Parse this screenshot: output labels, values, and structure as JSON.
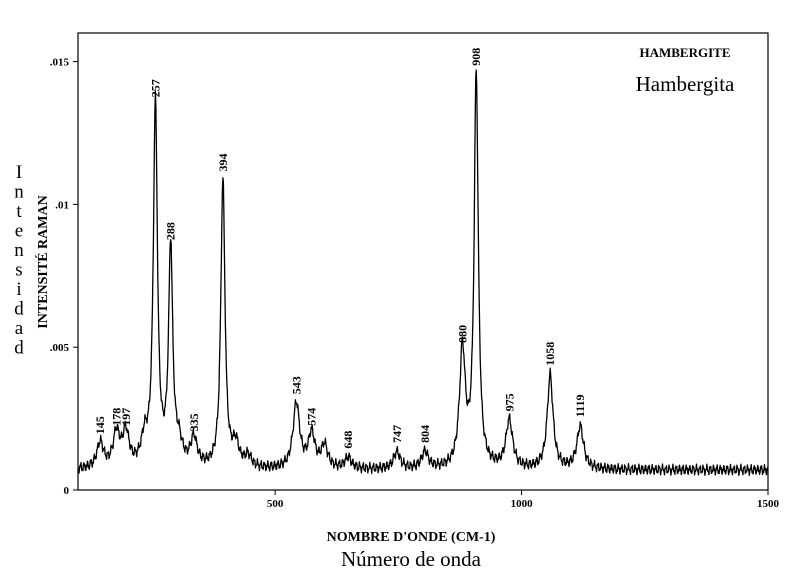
{
  "chart_data": {
    "type": "line",
    "title": "HAMBERGITE",
    "subtitle": "Hambergita",
    "xlabel": "NOMBRE D'ONDE (CM-1)",
    "xlabel_secondary": "Número de onda",
    "ylabel": "INTENSITÉ RAMAN",
    "ylabel_secondary": "Intensidad",
    "xlim": [
      100,
      1500
    ],
    "ylim": [
      0,
      0.016
    ],
    "x_ticks": [
      {
        "value": 500,
        "label": "500"
      },
      {
        "value": 1000,
        "label": "1000"
      },
      {
        "value": 1500,
        "label": "1500"
      }
    ],
    "y_ticks": [
      {
        "value": 0,
        "label": "0"
      },
      {
        "value": 0.005,
        "label": ".005"
      },
      {
        "value": 0.01,
        "label": ".01"
      },
      {
        "value": 0.015,
        "label": ".015"
      }
    ],
    "grid": false,
    "line_color": "#000000",
    "baseline": 0.0007,
    "peaks": [
      {
        "x": 145,
        "y": 0.0016,
        "label": "145"
      },
      {
        "x": 178,
        "y": 0.0019,
        "label": "178"
      },
      {
        "x": 197,
        "y": 0.0019,
        "label": "197"
      },
      {
        "x": 235,
        "y": 0.0016
      },
      {
        "x": 257,
        "y": 0.0134,
        "label": "257"
      },
      {
        "x": 288,
        "y": 0.0084,
        "label": "288"
      },
      {
        "x": 305,
        "y": 0.0014
      },
      {
        "x": 335,
        "y": 0.0017,
        "label": "335"
      },
      {
        "x": 394,
        "y": 0.0108,
        "label": "394"
      },
      {
        "x": 420,
        "y": 0.0015
      },
      {
        "x": 445,
        "y": 0.0011
      },
      {
        "x": 543,
        "y": 0.003,
        "label": "543"
      },
      {
        "x": 574,
        "y": 0.0019,
        "label": "574"
      },
      {
        "x": 600,
        "y": 0.0015
      },
      {
        "x": 648,
        "y": 0.0011,
        "label": "648"
      },
      {
        "x": 747,
        "y": 0.0013,
        "label": "747"
      },
      {
        "x": 804,
        "y": 0.0013,
        "label": "804"
      },
      {
        "x": 880,
        "y": 0.0048,
        "label": "880"
      },
      {
        "x": 908,
        "y": 0.0145,
        "label": "908"
      },
      {
        "x": 975,
        "y": 0.0024,
        "label": "975"
      },
      {
        "x": 1058,
        "y": 0.004,
        "label": "1058"
      },
      {
        "x": 1119,
        "y": 0.0022,
        "label": "1119"
      }
    ]
  }
}
